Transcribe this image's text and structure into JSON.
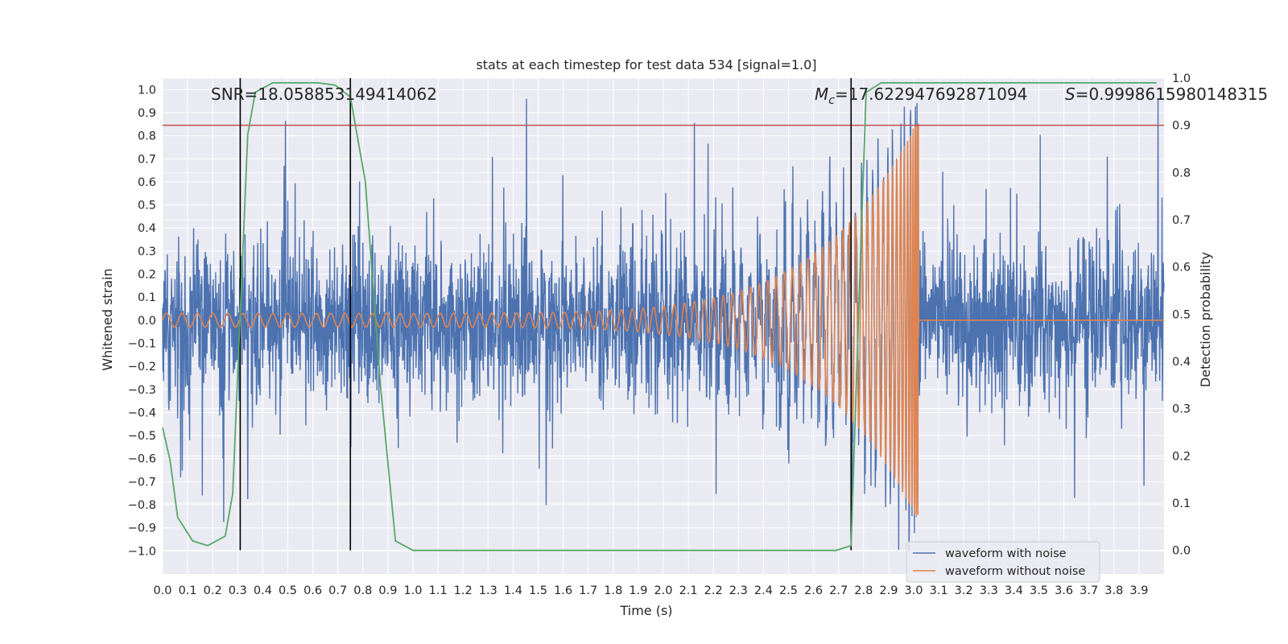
{
  "chart_data": {
    "type": "line",
    "title": "stats at each timestep for test data 534 [signal=1.0]",
    "xlabel": "Time (s)",
    "ylabel_left": "Whitened strain",
    "ylabel_right": "Detection probability",
    "xlim": [
      0.0,
      4.0
    ],
    "ylim_left": [
      -1.1,
      1.05
    ],
    "ylim_right": [
      -0.05,
      1.0
    ],
    "x_ticks": [
      "0.0",
      "0.1",
      "0.2",
      "0.3",
      "0.4",
      "0.5",
      "0.6",
      "0.7",
      "0.8",
      "0.9",
      "1.0",
      "1.1",
      "1.2",
      "1.3",
      "1.4",
      "1.5",
      "1.6",
      "1.7",
      "1.8",
      "1.9",
      "2.0",
      "2.1",
      "2.2",
      "2.3",
      "2.4",
      "2.5",
      "2.6",
      "2.7",
      "2.8",
      "2.9",
      "3.0",
      "3.1",
      "3.2",
      "3.3",
      "3.4",
      "3.5",
      "3.6",
      "3.7",
      "3.8",
      "3.9"
    ],
    "y_ticks_left": [
      "1.0",
      "0.9",
      "0.8",
      "0.7",
      "0.6",
      "0.5",
      "0.4",
      "0.3",
      "0.2",
      "0.1",
      "0.0",
      "-0.1",
      "-0.2",
      "-0.3",
      "-0.4",
      "-0.5",
      "-0.6",
      "-0.7",
      "-0.8",
      "-0.9",
      "-1.0"
    ],
    "y_ticks_right": [
      "1.0",
      "0.9",
      "0.8",
      "0.7",
      "0.6",
      "0.5",
      "0.4",
      "0.3",
      "0.2",
      "0.1",
      "0.0"
    ],
    "grid": true,
    "legend_position": "lower-right",
    "annotations": {
      "snr": "SNR=18.058853149414062",
      "mc_symbol": "M",
      "mc_sub": "c",
      "mc_value": "=17.622947692871094",
      "s_symbol": "S",
      "s_value": "=0.9998615980148315"
    },
    "threshold_right": 0.9,
    "vertical_markers_x": [
      0.31,
      0.75,
      2.75
    ],
    "series": [
      {
        "name": "waveform with noise",
        "color": "#4c72b0",
        "description_values": {
          "t_start": 0.0,
          "t_end": 4.0,
          "amplitude_range": [
            -1.0,
            0.96
          ]
        }
      },
      {
        "name": "waveform without noise",
        "color": "#dd8452",
        "chirp": {
          "t_start": 0.0,
          "t_merger": 3.02,
          "f_start": 16,
          "f_end": 180,
          "amp_start": 0.03,
          "amp_peak": 0.88,
          "post_merger_value": 0.0
        }
      },
      {
        "name": "",
        "axis": "right",
        "color": "#55a868",
        "x": [
          0.0,
          0.03,
          0.06,
          0.12,
          0.18,
          0.25,
          0.28,
          0.31,
          0.34,
          0.37,
          0.44,
          0.5,
          0.56,
          0.62,
          0.69,
          0.75,
          0.81,
          0.87,
          0.93,
          1.0,
          1.5,
          2.0,
          2.5,
          2.69,
          2.75,
          2.78,
          2.81,
          2.87,
          2.93,
          3.0,
          3.5,
          3.97
        ],
        "y": [
          0.26,
          0.19,
          0.07,
          0.02,
          0.01,
          0.03,
          0.12,
          0.5,
          0.88,
          0.97,
          0.99,
          0.99,
          0.99,
          0.99,
          0.985,
          0.96,
          0.78,
          0.35,
          0.02,
          0.0,
          0.0,
          0.0,
          0.0,
          0.0,
          0.01,
          0.5,
          0.97,
          0.99,
          0.99,
          0.99,
          0.99,
          0.99
        ]
      }
    ]
  }
}
